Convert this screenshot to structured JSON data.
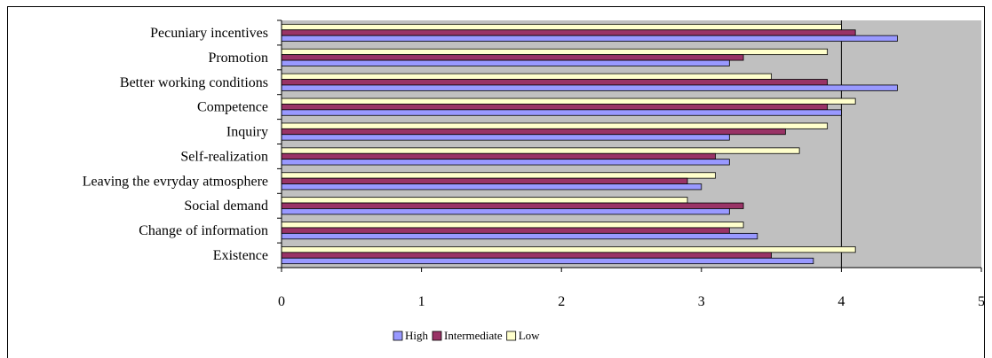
{
  "chart_data": {
    "type": "bar",
    "orientation": "horizontal",
    "categories": [
      "Pecuniary incentives",
      "Promotion",
      "Better working conditions",
      "Competence",
      "Inquiry",
      "Self-realization",
      "Leaving the evryday atmosphere",
      "Social demand",
      "Change of information",
      "Existence"
    ],
    "series": [
      {
        "name": "High",
        "color": "#9999ff",
        "values": [
          4.4,
          3.2,
          4.4,
          4.0,
          3.2,
          3.2,
          3.0,
          3.2,
          3.4,
          3.8
        ]
      },
      {
        "name": "Intermediate",
        "color": "#993366",
        "values": [
          4.1,
          3.3,
          3.9,
          3.9,
          3.6,
          3.1,
          2.9,
          3.3,
          3.2,
          3.5
        ]
      },
      {
        "name": "Low",
        "color": "#ffffcc",
        "values": [
          4.0,
          3.9,
          3.5,
          4.1,
          3.9,
          3.7,
          3.1,
          2.9,
          3.3,
          4.1
        ]
      }
    ],
    "xlim": [
      0,
      5
    ],
    "x_ticks": [
      "0",
      "1",
      "2",
      "3",
      "4",
      "5"
    ],
    "gridlines": [
      4
    ],
    "background": "#c0c0c0",
    "legend_position": "bottom"
  }
}
